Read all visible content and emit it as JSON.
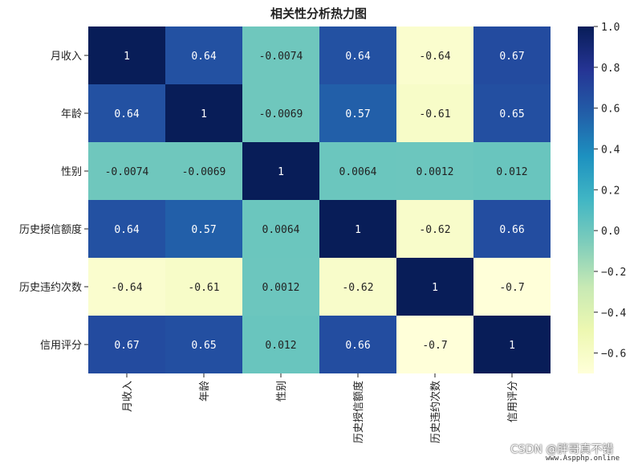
{
  "chart_data": {
    "type": "heatmap",
    "title": "相关性分析热力图",
    "labels": [
      "月收入",
      "年龄",
      "性别",
      "历史授信额度",
      "历史违约次数",
      "信用评分"
    ],
    "values": [
      [
        1,
        0.64,
        -0.0074,
        0.64,
        -0.64,
        0.67
      ],
      [
        0.64,
        1,
        -0.0069,
        0.57,
        -0.61,
        0.65
      ],
      [
        -0.0074,
        -0.0069,
        1,
        0.0064,
        0.0012,
        0.012
      ],
      [
        0.64,
        0.57,
        0.0064,
        1,
        -0.62,
        0.66
      ],
      [
        -0.64,
        -0.61,
        0.0012,
        -0.62,
        1,
        -0.7
      ],
      [
        0.67,
        0.65,
        0.012,
        0.66,
        -0.7,
        1
      ]
    ],
    "annotations": [
      [
        "1",
        "0.64",
        "-0.0074",
        "0.64",
        "-0.64",
        "0.67"
      ],
      [
        "0.64",
        "1",
        "-0.0069",
        "0.57",
        "-0.61",
        "0.65"
      ],
      [
        "-0.0074",
        "-0.0069",
        "1",
        "0.0064",
        "0.0012",
        "0.012"
      ],
      [
        "0.64",
        "0.57",
        "0.0064",
        "1",
        "-0.62",
        "0.66"
      ],
      [
        "-0.64",
        "-0.61",
        "0.0012",
        "-0.62",
        "1",
        "-0.7"
      ],
      [
        "0.67",
        "0.65",
        "0.012",
        "0.66",
        "-0.7",
        "1"
      ]
    ],
    "colormap": "YlGnBu",
    "vmin": -0.7,
    "vmax": 1.0,
    "colorbar_ticks": [
      1.0,
      0.8,
      0.6,
      0.4,
      0.2,
      0.0,
      -0.2,
      -0.4,
      -0.6
    ],
    "colorbar_tick_labels": [
      "1.0",
      "0.8",
      "0.6",
      "0.4",
      "0.2",
      "0.0",
      "−0.2",
      "−0.4",
      "−0.6"
    ],
    "colormap_stops": [
      "#ffffd9",
      "#edf8b1",
      "#c7e9b4",
      "#7fcdbb",
      "#41b6c4",
      "#1d91c0",
      "#225ea8",
      "#253494",
      "#081d58"
    ]
  },
  "watermark": {
    "line1": "CSDN @胖哥真不错",
    "line2": "www.Aspphp.online"
  }
}
